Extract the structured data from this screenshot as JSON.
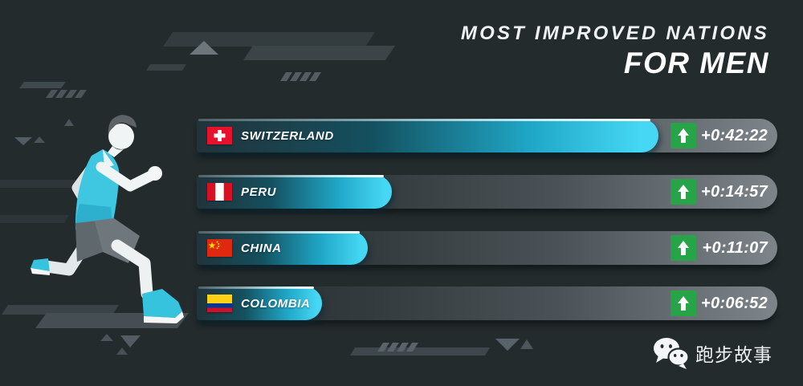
{
  "title": {
    "line1": "MOST IMPROVED NATIONS",
    "line2": "FOR MEN"
  },
  "chart_data": {
    "type": "bar",
    "orientation": "horizontal",
    "title": "MOST IMPROVED NATIONS FOR MEN",
    "categories": [
      "SWITZERLAND",
      "PERU",
      "CHINA",
      "COLOMBIA"
    ],
    "value_labels": [
      "+0:42:22",
      "+0:14:57",
      "+0:11:07",
      "+0:06:52"
    ],
    "values_seconds_improved": [
      2542,
      897,
      667,
      412
    ],
    "unit": "time improvement (h:mm:ss)",
    "legend": "none",
    "grid": false,
    "bar_color": "#45d7f4",
    "bar_fill_fractions": [
      0.795,
      0.336,
      0.295,
      0.216
    ]
  },
  "rows": [
    {
      "country": "SWITZERLAND",
      "time": "+0:42:22",
      "fill_pct": "79.5%",
      "flag": "switzerland"
    },
    {
      "country": "PERU",
      "time": "+0:14:57",
      "fill_pct": "33.6%",
      "flag": "peru"
    },
    {
      "country": "CHINA",
      "time": "+0:11:07",
      "fill_pct": "29.5%",
      "flag": "china"
    },
    {
      "country": "COLOMBIA",
      "time": "+0:06:52",
      "fill_pct": "21.6%",
      "flag": "colombia"
    }
  ],
  "icons": [
    {
      "name": "up-arrow-icon",
      "meaning": "improvement indicator"
    },
    {
      "name": "wechat-icon",
      "meaning": "WeChat brand logo"
    }
  ],
  "footer": {
    "brand": "跑步故事"
  },
  "colors": {
    "background": "#232b2d",
    "bar_cyan": "#45d7f4",
    "track_gray": "#7d848a",
    "arrow_green": "#27a348",
    "text": "#ffffff"
  }
}
